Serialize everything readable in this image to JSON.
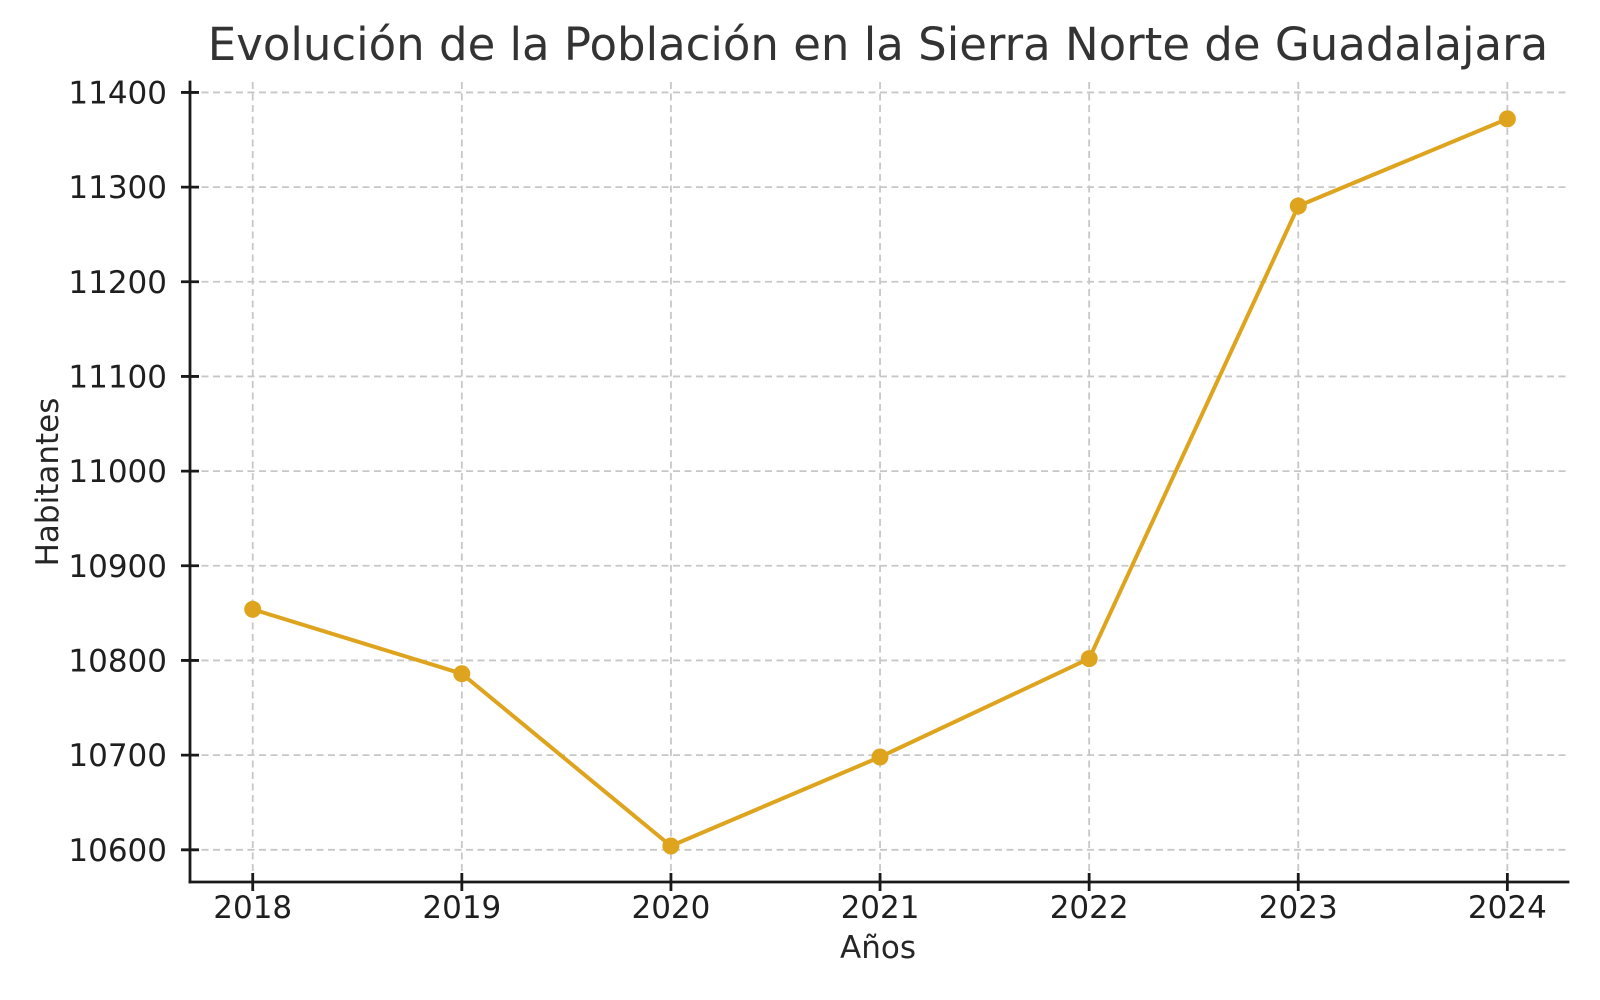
{
  "chart_data": {
    "type": "line",
    "title": "Evolución de la Población en la Sierra Norte de Guadalajara",
    "xlabel": "Años",
    "ylabel": "Habitantes",
    "x": [
      2018,
      2019,
      2020,
      2021,
      2022,
      2023,
      2024
    ],
    "series": [
      {
        "name": "Habitantes",
        "values": [
          10854,
          10786,
          10604,
          10698,
          10802,
          11280,
          11372
        ]
      }
    ],
    "xticks": [
      2018,
      2019,
      2020,
      2021,
      2022,
      2023,
      2024
    ],
    "yticks": [
      10600,
      10700,
      10800,
      10900,
      11000,
      11100,
      11200,
      11300,
      11400
    ],
    "xlim": [
      2017.7,
      2024.29
    ],
    "ylim": [
      10566,
      11411
    ],
    "grid": true,
    "grid_style": "dashed",
    "legend": "none",
    "marker": "circle",
    "tick_direction": "inout"
  },
  "colors": {
    "line": "#DFA41E",
    "marker": "#DFA41E",
    "grid": "#c7c7c7",
    "axis": "#1a1a1a",
    "tick_text": "#1f1f1f",
    "label_text": "#262626",
    "title_text": "#333333",
    "background": "#ffffff"
  }
}
